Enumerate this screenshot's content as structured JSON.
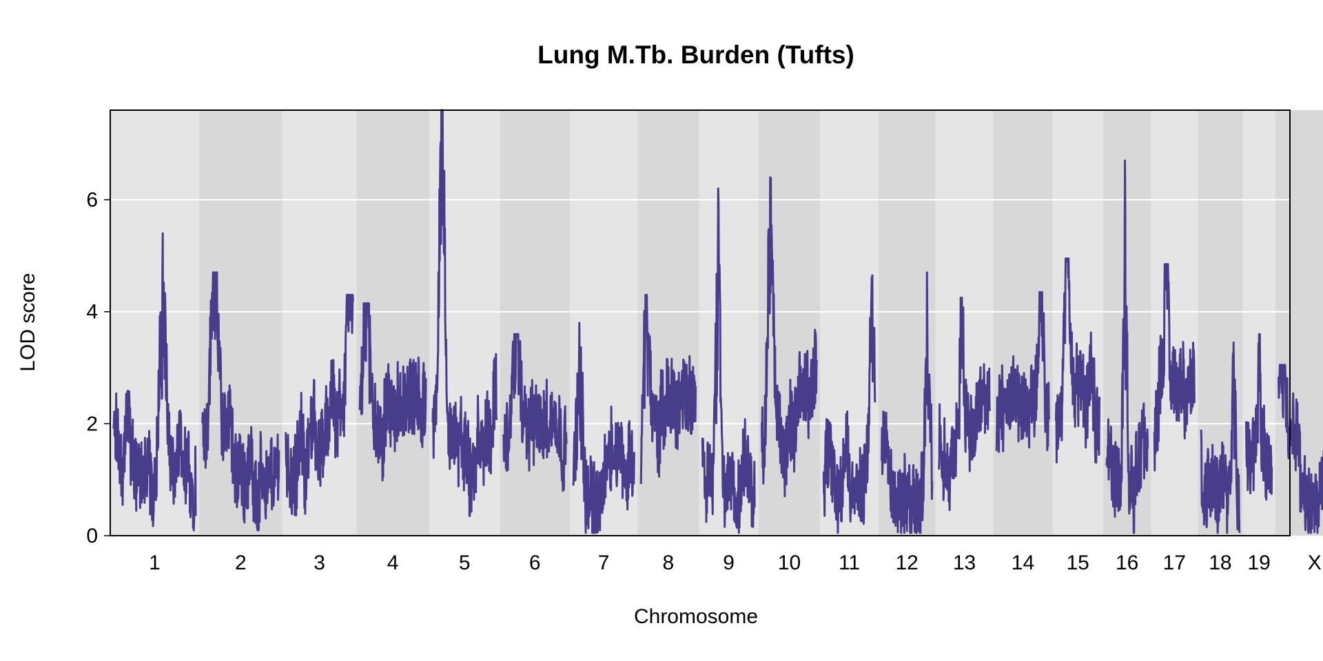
{
  "chart_data": {
    "type": "line",
    "title": "Lung M.Tb. Burden (Tufts)",
    "xlabel": "Chromosome",
    "ylabel": "LOD score",
    "ylim": [
      0,
      7.6
    ],
    "yticks": [
      0,
      2,
      4,
      6
    ],
    "grid": true,
    "line_color": "#483d8b",
    "band_colors": [
      "#e5e5e5",
      "#d8d8d8"
    ],
    "gridline_color": "#ffffff",
    "chromosomes": [
      {
        "name": "1",
        "length": 195,
        "peak": 5.4,
        "peak_pos": 0.6
      },
      {
        "name": "2",
        "length": 182,
        "peak": 4.7,
        "peak_pos": 0.16
      },
      {
        "name": "3",
        "length": 160,
        "peak": 4.3,
        "peak_pos": 0.95
      },
      {
        "name": "4",
        "length": 157,
        "peak": 4.15,
        "peak_pos": 0.1
      },
      {
        "name": "5",
        "length": 152,
        "peak": 7.6,
        "peak_pos": 0.15
      },
      {
        "name": "6",
        "length": 150,
        "peak": 3.6,
        "peak_pos": 0.2
      },
      {
        "name": "7",
        "length": 145,
        "peak": 3.8,
        "peak_pos": 0.1
      },
      {
        "name": "8",
        "length": 130,
        "peak": 4.3,
        "peak_pos": 0.1
      },
      {
        "name": "9",
        "length": 125,
        "peak": 6.2,
        "peak_pos": 0.3
      },
      {
        "name": "10",
        "length": 131,
        "peak": 6.4,
        "peak_pos": 0.15
      },
      {
        "name": "11",
        "length": 122,
        "peak": 4.65,
        "peak_pos": 0.95
      },
      {
        "name": "12",
        "length": 120,
        "peak": 4.7,
        "peak_pos": 0.9
      },
      {
        "name": "13",
        "length": 121,
        "peak": 4.25,
        "peak_pos": 0.45
      },
      {
        "name": "14",
        "length": 125,
        "peak": 4.35,
        "peak_pos": 0.85
      },
      {
        "name": "15",
        "length": 104,
        "peak": 4.95,
        "peak_pos": 0.25
      },
      {
        "name": "16",
        "length": 98,
        "peak": 6.7,
        "peak_pos": 0.45
      },
      {
        "name": "17",
        "length": 95,
        "peak": 4.85,
        "peak_pos": 0.3
      },
      {
        "name": "18",
        "length": 91,
        "peak": 3.45,
        "peak_pos": 0.85
      },
      {
        "name": "19",
        "length": 61,
        "peak": 3.6,
        "peak_pos": 0.5
      },
      {
        "name": "X",
        "length": 171,
        "peak": 3.05,
        "peak_pos": 0.05
      }
    ]
  }
}
